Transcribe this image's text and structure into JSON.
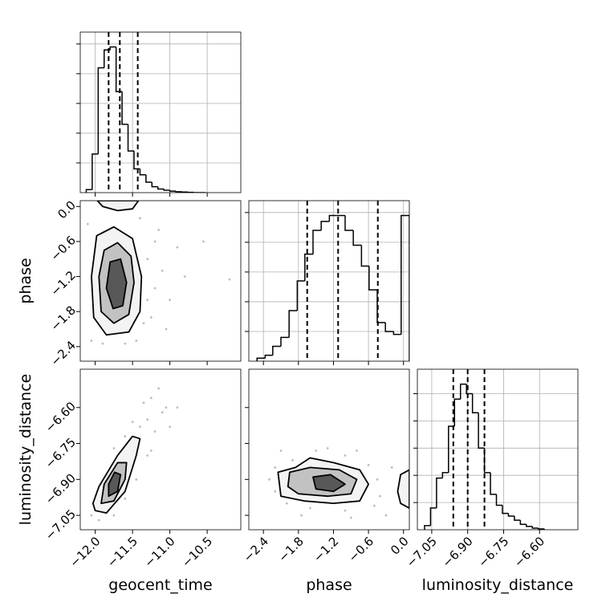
{
  "chart_data": {
    "type": "corner",
    "color": "#000000",
    "grid": true,
    "point_color": "#bdbdbd",
    "contour_fills": [
      "#f3f3f3",
      "#c2c2c2",
      "#585858"
    ],
    "parameters": [
      {
        "name": "geocent_time",
        "lim": [
          -12.2,
          -10.05
        ],
        "ticks": [
          {
            "value": -12.0,
            "label": "−12.0"
          },
          {
            "value": -11.5,
            "label": "−11.5"
          },
          {
            "value": -11.0,
            "label": "−11.0"
          },
          {
            "value": -10.5,
            "label": "−10.5"
          }
        ],
        "bins": [
          -12.12,
          -12.04,
          -11.96,
          -11.88,
          -11.8,
          -11.72,
          -11.64,
          -11.56,
          -11.48,
          -11.4,
          -11.32,
          -11.24,
          -11.16,
          -11.08,
          -11.0,
          -10.92,
          -10.84,
          -10.76,
          -10.68,
          -10.6,
          -10.52
        ],
        "counts": [
          10,
          130,
          420,
          480,
          490,
          340,
          230,
          140,
          80,
          60,
          35,
          20,
          12,
          8,
          5,
          3,
          2,
          1,
          0,
          0
        ],
        "quantiles": [
          -11.82,
          -11.67,
          -11.43
        ],
        "hist_ylim": [
          0,
          540
        ],
        "hist_yticks": [
          100,
          200,
          300,
          400,
          500
        ]
      },
      {
        "name": "phase",
        "lim": [
          -2.65,
          0.1
        ],
        "ticks": [
          {
            "value": -2.4,
            "label": "−2.4"
          },
          {
            "value": -1.8,
            "label": "−1.8"
          },
          {
            "value": -1.2,
            "label": "−1.2"
          },
          {
            "value": -0.6,
            "label": "−0.6"
          },
          {
            "value": 0.0,
            "label": "0.0"
          }
        ],
        "bins": [
          -2.51,
          -2.37,
          -2.24,
          -2.1,
          -1.96,
          -1.82,
          -1.69,
          -1.55,
          -1.41,
          -1.27,
          -1.14,
          -1.0,
          -0.86,
          -0.72,
          -0.59,
          -0.45,
          -0.31,
          -0.17,
          -0.04,
          0.1
        ],
        "counts": [
          10,
          20,
          50,
          80,
          170,
          270,
          360,
          440,
          470,
          490,
          490,
          440,
          390,
          320,
          240,
          130,
          100,
          90,
          490
        ],
        "quantiles": [
          -1.65,
          -1.12,
          -0.44
        ],
        "hist_ylim": [
          0,
          540
        ],
        "hist_yticks": [
          100,
          200,
          300,
          400,
          500
        ]
      },
      {
        "name": "luminosity_distance",
        "lim": [
          -7.11,
          -6.44
        ],
        "ticks": [
          {
            "value": -7.05,
            "label": "−7.05"
          },
          {
            "value": -6.9,
            "label": "−6.90"
          },
          {
            "value": -6.75,
            "label": "−6.75"
          },
          {
            "value": -6.6,
            "label": "−6.60"
          }
        ],
        "bins": [
          -7.08,
          -7.055,
          -7.03,
          -7.005,
          -6.98,
          -6.955,
          -6.93,
          -6.905,
          -6.88,
          -6.855,
          -6.83,
          -6.805,
          -6.78,
          -6.755,
          -6.73,
          -6.705,
          -6.68,
          -6.655,
          -6.63,
          -6.605,
          -6.58
        ],
        "counts": [
          15,
          80,
          190,
          210,
          380,
          480,
          535,
          500,
          430,
          300,
          210,
          130,
          90,
          60,
          50,
          35,
          20,
          12,
          6,
          3
        ],
        "quantiles": [
          -6.96,
          -6.9,
          -6.83
        ],
        "hist_ylim": [
          0,
          590
        ],
        "hist_yticks": [
          100,
          200,
          300,
          400,
          500
        ]
      }
    ],
    "pairs": [
      {
        "points": [
          [
            -11.3,
            -0.9
          ],
          [
            -11.2,
            -1.4
          ],
          [
            -11.1,
            -1.1
          ],
          [
            -11.25,
            -1.9
          ],
          [
            -12.05,
            -2.3
          ],
          [
            -11.6,
            -2.35
          ],
          [
            -11.35,
            -2.0
          ],
          [
            -11.0,
            -1.6
          ],
          [
            -11.15,
            -0.4
          ],
          [
            -10.9,
            -0.7
          ],
          [
            -11.4,
            -0.2
          ],
          [
            -12.1,
            -0.3
          ],
          [
            -11.3,
            -1.6
          ],
          [
            -10.8,
            -1.2
          ],
          [
            -11.45,
            -2.3
          ],
          [
            -11.9,
            -2.35
          ],
          [
            -11.2,
            -0.6
          ],
          [
            -10.55,
            -0.6
          ],
          [
            -10.2,
            -1.25
          ],
          [
            -11.05,
            -2.1
          ]
        ],
        "contours": [
          [
            [
              [
                -11.98,
                -0.5
              ],
              [
                -11.75,
                -0.35
              ],
              [
                -11.5,
                -0.55
              ],
              [
                -11.38,
                -1.2
              ],
              [
                -11.4,
                -1.8
              ],
              [
                -11.55,
                -2.15
              ],
              [
                -11.85,
                -2.2
              ],
              [
                -12.02,
                -1.9
              ],
              [
                -12.05,
                -1.2
              ]
            ],
            [
              [
                -11.97,
                0.1
              ],
              [
                -11.9,
                0.0
              ],
              [
                -11.7,
                -0.07
              ],
              [
                -11.5,
                -0.04
              ],
              [
                -11.42,
                0.1
              ]
            ]
          ],
          [
            [
              [
                -11.88,
                -0.75
              ],
              [
                -11.7,
                -0.62
              ],
              [
                -11.52,
                -0.85
              ],
              [
                -11.48,
                -1.3
              ],
              [
                -11.55,
                -1.85
              ],
              [
                -11.75,
                -2.0
              ],
              [
                -11.92,
                -1.8
              ],
              [
                -11.95,
                -1.2
              ]
            ]
          ],
          [
            [
              [
                -11.8,
                -0.95
              ],
              [
                -11.66,
                -0.9
              ],
              [
                -11.58,
                -1.3
              ],
              [
                -11.63,
                -1.7
              ],
              [
                -11.76,
                -1.75
              ],
              [
                -11.85,
                -1.4
              ]
            ]
          ]
        ]
      },
      {
        "points": [
          [
            -11.3,
            -6.65
          ],
          [
            -11.2,
            -6.7
          ],
          [
            -11.1,
            -6.62
          ],
          [
            -11.4,
            -6.68
          ],
          [
            -11.25,
            -6.78
          ],
          [
            -11.5,
            -6.66
          ],
          [
            -11.05,
            -6.6
          ],
          [
            -11.15,
            -6.52
          ],
          [
            -11.35,
            -6.58
          ],
          [
            -12.05,
            -7.05
          ],
          [
            -11.95,
            -7.07
          ],
          [
            -11.75,
            -7.05
          ],
          [
            -11.6,
            -6.98
          ],
          [
            -11.45,
            -6.9
          ],
          [
            -11.3,
            -6.8
          ],
          [
            -11.0,
            -6.68
          ],
          [
            -11.25,
            -6.56
          ],
          [
            -11.6,
            -6.72
          ],
          [
            -11.75,
            -6.77
          ],
          [
            -10.9,
            -6.6
          ]
        ],
        "contours": [
          [
            [
              [
                -12.0,
                -7.03
              ],
              [
                -11.85,
                -7.04
              ],
              [
                -11.6,
                -6.95
              ],
              [
                -11.45,
                -6.8
              ],
              [
                -11.4,
                -6.73
              ],
              [
                -11.5,
                -6.72
              ],
              [
                -11.7,
                -6.8
              ],
              [
                -11.95,
                -6.93
              ],
              [
                -12.03,
                -7.0
              ]
            ]
          ],
          [
            [
              [
                -11.92,
                -7.0
              ],
              [
                -11.75,
                -6.99
              ],
              [
                -11.6,
                -6.9
              ],
              [
                -11.58,
                -6.83
              ],
              [
                -11.7,
                -6.83
              ],
              [
                -11.88,
                -6.92
              ]
            ]
          ],
          [
            [
              [
                -11.82,
                -6.97
              ],
              [
                -11.7,
                -6.95
              ],
              [
                -11.66,
                -6.88
              ],
              [
                -11.74,
                -6.87
              ],
              [
                -11.82,
                -6.92
              ]
            ]
          ]
        ]
      },
      {
        "points": [
          [
            -2.3,
            -6.9
          ],
          [
            -2.2,
            -6.95
          ],
          [
            -2.2,
            -6.85
          ],
          [
            -1.9,
            -6.82
          ],
          [
            -1.5,
            -6.78
          ],
          [
            -1.0,
            -6.8
          ],
          [
            -0.6,
            -6.84
          ],
          [
            -0.45,
            -6.9
          ],
          [
            -0.4,
            -6.97
          ],
          [
            -0.5,
            -7.01
          ],
          [
            -1.0,
            -7.03
          ],
          [
            -1.6,
            -7.02
          ],
          [
            -2.0,
            -7.0
          ],
          [
            -1.3,
            -6.77
          ],
          [
            -0.8,
            -6.78
          ],
          [
            -0.3,
            -7.05
          ],
          [
            -0.2,
            -6.85
          ],
          [
            -2.1,
            -6.78
          ],
          [
            -1.75,
            -7.05
          ],
          [
            -0.9,
            -7.06
          ]
        ],
        "contours": [
          [
            [
              [
                -2.15,
                -6.87
              ],
              [
                -1.85,
                -6.85
              ],
              [
                -1.6,
                -6.81
              ],
              [
                -1.2,
                -6.83
              ],
              [
                -0.75,
                -6.86
              ],
              [
                -0.6,
                -6.92
              ],
              [
                -0.75,
                -6.99
              ],
              [
                -1.2,
                -7.0
              ],
              [
                -1.7,
                -6.99
              ],
              [
                -2.1,
                -6.97
              ]
            ],
            [
              [
                0.1,
                -6.86
              ],
              [
                -0.05,
                -6.88
              ],
              [
                -0.1,
                -6.95
              ],
              [
                -0.05,
                -7.0
              ],
              [
                0.1,
                -7.02
              ]
            ]
          ],
          [
            [
              [
                -1.95,
                -6.87
              ],
              [
                -1.6,
                -6.85
              ],
              [
                -1.1,
                -6.86
              ],
              [
                -0.8,
                -6.9
              ],
              [
                -0.9,
                -6.96
              ],
              [
                -1.3,
                -6.97
              ],
              [
                -1.8,
                -6.96
              ],
              [
                -1.98,
                -6.93
              ]
            ]
          ],
          [
            [
              [
                -1.55,
                -6.89
              ],
              [
                -1.25,
                -6.88
              ],
              [
                -1.0,
                -6.92
              ],
              [
                -1.2,
                -6.95
              ],
              [
                -1.5,
                -6.94
              ]
            ]
          ]
        ]
      }
    ]
  }
}
